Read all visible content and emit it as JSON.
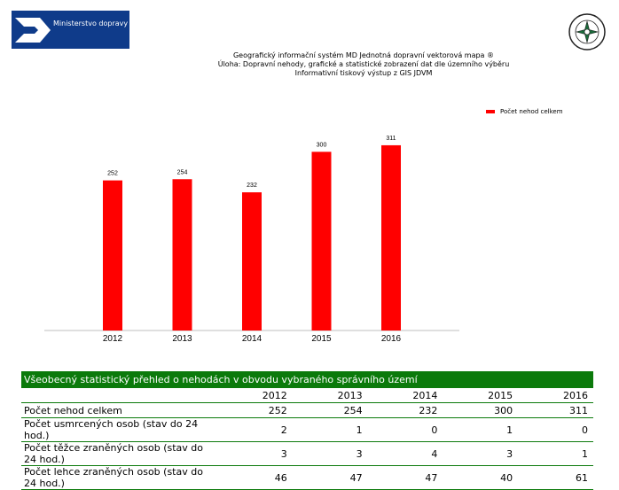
{
  "logo": {
    "ministry_text": "Ministerstvo dopravy"
  },
  "header": {
    "line1": "Geografický informační systém MD Jednotná dopravní vektorová mapa ®",
    "line2": "Úloha: Dopravní nehody, grafické a statistické zobrazení dat dle územního výběru",
    "line3": "Informativní tiskový výstup z GIS JDVM"
  },
  "chart_data": {
    "type": "bar",
    "categories": [
      "2012",
      "2013",
      "2014",
      "2015",
      "2016"
    ],
    "series": [
      {
        "name": "Počet nehod celkem",
        "values": [
          252,
          254,
          232,
          300,
          311
        ],
        "color": "#ff0000"
      }
    ],
    "ylim": [
      0,
      360
    ],
    "grid": false,
    "legend_position": "top-right",
    "data_labels": true
  },
  "table": {
    "title": "Všeobecný statistický přehled o nehodách v obvodu vybraného správního území",
    "years": [
      "2012",
      "2013",
      "2014",
      "2015",
      "2016"
    ],
    "rows": [
      {
        "label": "Počet nehod celkem",
        "values": [
          "252",
          "254",
          "232",
          "300",
          "311"
        ]
      },
      {
        "label": "Počet usmrcených osob (stav do 24 hod.)",
        "values": [
          "2",
          "1",
          "0",
          "1",
          "0"
        ]
      },
      {
        "label": "Počet těžce zraněných osob (stav do 24 hod.)",
        "values": [
          "3",
          "3",
          "4",
          "3",
          "1"
        ]
      },
      {
        "label": "Počet lehce zraněných osob (stav do 24 hod.)",
        "values": [
          "46",
          "47",
          "47",
          "40",
          "61"
        ]
      }
    ]
  }
}
